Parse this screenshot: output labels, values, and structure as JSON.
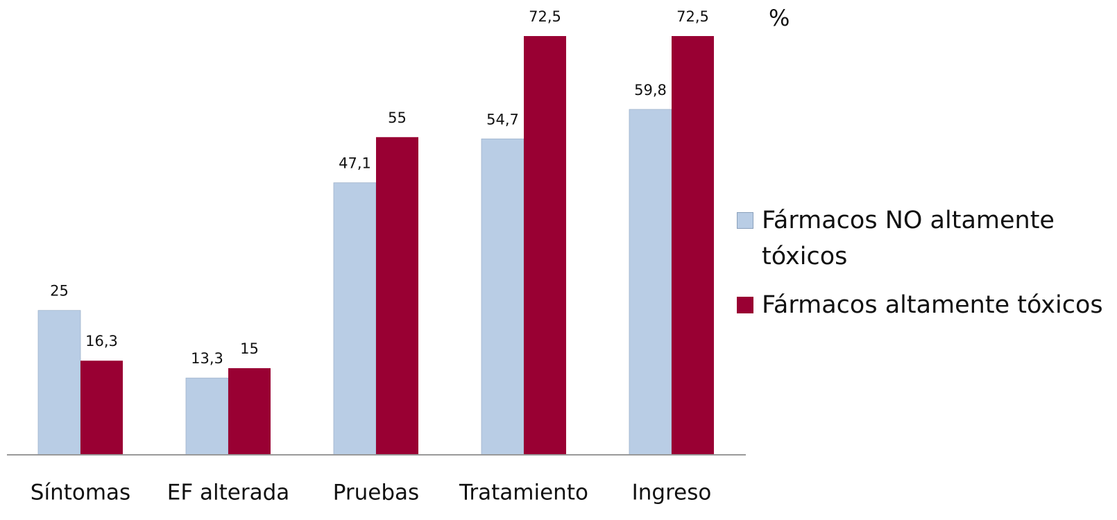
{
  "chart_data": {
    "type": "bar",
    "y_label": "%",
    "categories": [
      "Síntomas",
      "EF alterada",
      "Pruebas",
      "Tratamiento",
      "Ingreso"
    ],
    "series": [
      {
        "name": "Fármacos NO altamente tóxicos",
        "color": "#b9cde5",
        "values": [
          25,
          13.3,
          47.1,
          54.7,
          59.8
        ],
        "value_labels": [
          "25",
          "13,3",
          "47,1",
          "54,7",
          "59,8"
        ]
      },
      {
        "name": "Fármacos altamente tóxicos",
        "color": "#990033",
        "values": [
          16.3,
          15,
          55,
          72.5,
          72.5
        ],
        "value_labels": [
          "16,3",
          "15",
          "55",
          "72,5",
          "72,5"
        ]
      }
    ],
    "legend": "right"
  }
}
